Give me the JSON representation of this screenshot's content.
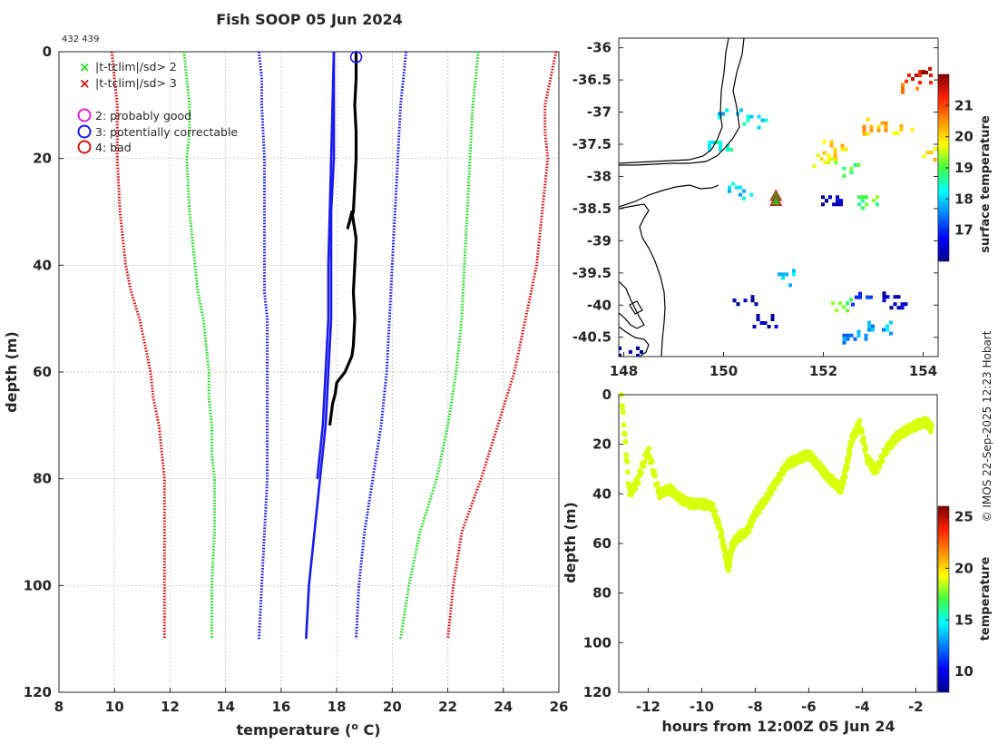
{
  "title": "Fish SOOP 05 Jun 2024",
  "ids_label": "432 439",
  "credit": "© IMOS 22-Sep-2025 12:23 Hobart",
  "colors": {
    "green": "#22dd22",
    "red": "#dd1111",
    "blue": "#1a1aee",
    "black": "#000000",
    "magenta": "#dd22dd",
    "track": "#aaee22"
  },
  "chart_data": [
    {
      "id": "profile",
      "type": "line",
      "title": "Fish SOOP 05 Jun 2024",
      "xlabel": "temperature (° C)",
      "ylabel": "depth (m)",
      "xlim": [
        8,
        26
      ],
      "ylim": [
        0,
        120
      ],
      "y_reversed": true,
      "grid": true,
      "x_ticks": [
        8,
        10,
        12,
        14,
        16,
        18,
        20,
        22,
        24,
        26
      ],
      "y_ticks": [
        0,
        20,
        40,
        60,
        80,
        100,
        120
      ],
      "legend": {
        "location": "top-left",
        "entries": [
          {
            "symbol": "x",
            "color": "#22dd22",
            "label": "|t-tclim|/sd> 2"
          },
          {
            "symbol": "x",
            "color": "#dd1111",
            "label": "|t-tclim|/sd> 3"
          },
          {
            "symbol": "o",
            "color": "#dd22dd",
            "label": "2: probably good"
          },
          {
            "symbol": "o",
            "color": "#1a1aee",
            "label": "3: potentially correctable"
          },
          {
            "symbol": "o",
            "color": "#dd1111",
            "label": "4: bad"
          }
        ]
      },
      "series": [
        {
          "name": "clim -3sd",
          "color": "#dd1111",
          "style": "dotted",
          "depth": [
            0,
            5,
            10,
            15,
            20,
            30,
            40,
            45,
            50,
            55,
            60,
            65,
            70,
            75,
            80,
            90,
            100,
            110
          ],
          "temp": [
            9.9,
            10.0,
            10.1,
            10.1,
            10.1,
            10.2,
            10.4,
            10.6,
            10.9,
            11.1,
            11.3,
            11.4,
            11.6,
            11.7,
            11.8,
            11.8,
            11.8,
            11.8
          ]
        },
        {
          "name": "clim -2sd",
          "color": "#22dd22",
          "style": "dotted",
          "depth": [
            0,
            5,
            10,
            15,
            20,
            30,
            40,
            45,
            50,
            55,
            60,
            65,
            70,
            75,
            80,
            90,
            100,
            110
          ],
          "temp": [
            12.5,
            12.6,
            12.7,
            12.7,
            12.6,
            12.7,
            12.9,
            13.0,
            13.2,
            13.3,
            13.4,
            13.4,
            13.5,
            13.5,
            13.6,
            13.6,
            13.5,
            13.5
          ]
        },
        {
          "name": "climatology mean",
          "color": "#1a1aee",
          "style": "solid",
          "depth": [
            0,
            10,
            20,
            30,
            40,
            50,
            60,
            70,
            80,
            90,
            100,
            110
          ],
          "temp": [
            17.9,
            17.9,
            17.9,
            17.8,
            17.8,
            17.8,
            17.7,
            17.6,
            17.4,
            17.2,
            17.0,
            16.9
          ]
        },
        {
          "name": "clim +2sd upper",
          "color": "#1a1aee",
          "style": "solid",
          "depth": [
            0,
            10,
            20,
            30,
            40,
            50,
            60,
            70,
            80
          ],
          "temp": [
            17.9,
            17.85,
            17.8,
            17.75,
            17.7,
            17.7,
            17.6,
            17.5,
            17.3
          ]
        },
        {
          "name": "clim -1sd",
          "color": "#1a1aee",
          "style": "dotted",
          "depth": [
            0,
            5,
            10,
            20,
            30,
            40,
            45,
            50,
            55,
            60,
            65,
            70,
            75,
            80,
            90,
            100,
            110
          ],
          "temp": [
            15.2,
            15.3,
            15.3,
            15.4,
            15.4,
            15.4,
            15.4,
            15.5,
            15.5,
            15.5,
            15.5,
            15.5,
            15.5,
            15.5,
            15.4,
            15.3,
            15.2
          ]
        },
        {
          "name": "clim +1sd",
          "color": "#1a1aee",
          "style": "dotted",
          "depth": [
            0,
            5,
            10,
            20,
            30,
            40,
            50,
            60,
            70,
            80,
            90,
            100,
            110
          ],
          "temp": [
            20.5,
            20.4,
            20.3,
            20.2,
            20.1,
            20.0,
            19.9,
            19.8,
            19.6,
            19.3,
            19.0,
            18.8,
            18.7
          ]
        },
        {
          "name": "clim +2sd",
          "color": "#22dd22",
          "style": "dotted",
          "depth": [
            0,
            5,
            10,
            20,
            30,
            40,
            50,
            60,
            70,
            80,
            90,
            100,
            110
          ],
          "temp": [
            23.1,
            23.0,
            22.9,
            22.8,
            22.7,
            22.6,
            22.5,
            22.3,
            22.0,
            21.6,
            21.0,
            20.6,
            20.3
          ]
        },
        {
          "name": "clim +3sd",
          "color": "#dd1111",
          "style": "dotted",
          "depth": [
            0,
            5,
            10,
            15,
            20,
            30,
            40,
            50,
            60,
            70,
            80,
            90,
            100,
            110
          ],
          "temp": [
            25.9,
            25.7,
            25.5,
            25.5,
            25.6,
            25.4,
            25.2,
            24.8,
            24.4,
            23.8,
            23.2,
            22.5,
            22.2,
            22.0
          ]
        },
        {
          "name": "observed",
          "color": "#000000",
          "style": "solid",
          "depth": [
            0,
            5,
            10,
            15,
            20,
            25,
            30,
            32,
            33,
            30,
            35,
            40,
            45,
            50,
            55,
            57,
            60,
            62,
            64,
            66,
            68,
            70
          ],
          "temp": [
            18.7,
            18.7,
            18.65,
            18.7,
            18.7,
            18.65,
            18.6,
            18.45,
            18.4,
            18.55,
            18.7,
            18.65,
            18.6,
            18.65,
            18.6,
            18.55,
            18.3,
            18.0,
            17.95,
            17.85,
            17.8,
            17.75
          ]
        }
      ],
      "flag_marker": {
        "temp": 18.7,
        "depth": 1,
        "flag": "3: potentially correctable"
      }
    },
    {
      "id": "map",
      "type": "heatmap",
      "xlim": [
        147.9,
        154.3
      ],
      "ylim": [
        -40.8,
        -35.85
      ],
      "x_ticks": [
        148,
        150,
        152,
        154
      ],
      "y_ticks": [
        -36,
        -36.5,
        -37,
        -37.5,
        -38,
        -38.5,
        -39,
        -39.5,
        -40,
        -40.5
      ],
      "colorbar_label": "surface temperature",
      "colorbar_range": [
        16,
        22
      ],
      "colorbar_ticks": [
        17,
        18,
        19,
        20,
        21
      ],
      "markers": [
        {
          "lon": 151.05,
          "lat": -38.3
        },
        {
          "lon": 151.05,
          "lat": -38.38
        }
      ],
      "sst_patches": [
        {
          "lon": 153.9,
          "lat": -36.4,
          "value": 21.5
        },
        {
          "lon": 153.7,
          "lat": -36.55,
          "value": 20.8
        },
        {
          "lon": 154.1,
          "lat": -36.3,
          "value": 21.8
        },
        {
          "lon": 153.0,
          "lat": -37.2,
          "value": 20.3
        },
        {
          "lon": 153.6,
          "lat": -37.3,
          "value": 20.1
        },
        {
          "lon": 152.2,
          "lat": -37.55,
          "value": 20.0
        },
        {
          "lon": 152.0,
          "lat": -37.7,
          "value": 19.6
        },
        {
          "lon": 152.6,
          "lat": -37.85,
          "value": 19.0
        },
        {
          "lon": 150.1,
          "lat": -37.0,
          "value": 18.0
        },
        {
          "lon": 150.6,
          "lat": -37.1,
          "value": 18.2
        },
        {
          "lon": 149.9,
          "lat": -37.5,
          "value": 18.4
        },
        {
          "lon": 150.3,
          "lat": -38.2,
          "value": 18.1
        },
        {
          "lon": 151.3,
          "lat": -39.55,
          "value": 18.1
        },
        {
          "lon": 150.4,
          "lat": -39.9,
          "value": 16.2
        },
        {
          "lon": 150.8,
          "lat": -40.25,
          "value": 16.3
        },
        {
          "lon": 152.7,
          "lat": -39.85,
          "value": 17.3
        },
        {
          "lon": 153.4,
          "lat": -39.9,
          "value": 16.3
        },
        {
          "lon": 152.3,
          "lat": -40.0,
          "value": 19.0
        },
        {
          "lon": 152.6,
          "lat": -40.5,
          "value": 17.6
        },
        {
          "lon": 153.1,
          "lat": -40.3,
          "value": 17.8
        },
        {
          "lon": 148.1,
          "lat": -40.7,
          "value": 16.1
        },
        {
          "lon": 152.9,
          "lat": -38.35,
          "value": 19.0
        },
        {
          "lon": 152.1,
          "lat": -38.35,
          "value": 16.2
        },
        {
          "lon": 154.2,
          "lat": -37.6,
          "value": 20.1
        }
      ]
    },
    {
      "id": "track",
      "type": "scatter",
      "xlabel": "hours from 12:00Z 05 Jun 24",
      "ylabel": "depth (m)",
      "xlim": [
        -13.1,
        -1.2
      ],
      "ylim": [
        0,
        120
      ],
      "y_reversed": true,
      "x_ticks": [
        -12,
        -10,
        -8,
        -6,
        -4,
        -2
      ],
      "y_ticks": [
        0,
        20,
        40,
        60,
        80,
        100,
        120
      ],
      "colorbar_label": "temperature",
      "colorbar_range": [
        8,
        26
      ],
      "colorbar_ticks": [
        10,
        15,
        20,
        25
      ],
      "hours": [
        -13.0,
        -12.7,
        -12.4,
        -12.0,
        -11.6,
        -11.2,
        -10.8,
        -10.4,
        -10.0,
        -9.6,
        -9.3,
        -9.1,
        -9.0,
        -8.9,
        -8.7,
        -8.3,
        -8.0,
        -7.6,
        -7.2,
        -6.8,
        -6.4,
        -6.0,
        -5.6,
        -5.3,
        -5.0,
        -4.8,
        -4.6,
        -4.4,
        -4.1,
        -3.8,
        -3.5,
        -3.1,
        -2.7,
        -2.3,
        -1.9,
        -1.6,
        -1.4
      ],
      "depth": [
        0,
        40,
        35,
        22,
        40,
        38,
        42,
        44,
        44,
        45,
        55,
        65,
        70,
        62,
        58,
        55,
        48,
        42,
        35,
        28,
        26,
        24,
        29,
        33,
        36,
        38,
        30,
        18,
        12,
        26,
        31,
        22,
        17,
        14,
        12,
        11,
        14
      ],
      "temperature_value": 18.8
    }
  ]
}
